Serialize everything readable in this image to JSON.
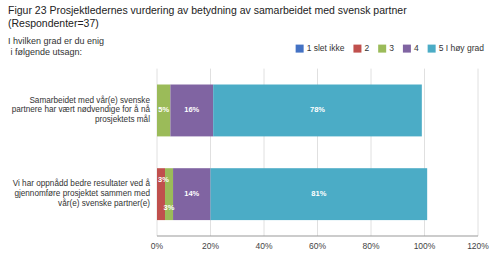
{
  "chart_data": {
    "type": "bar",
    "orientation": "horizontal",
    "stacked": true,
    "title": "Figur 23 Prosjektledernes vurdering av betydning av samarbeidet med svensk partner (Respondenter=37)",
    "annotations": [
      "I hvilken grad er du enig\n i følgende utsagn:"
    ],
    "categories": [
      "Samarbeidet med vår(e) svenske\npartnere har vært nødvendige for å nå\nprosjektets mål",
      "Vi har oppnådd bedre resultater ved å\ngjennomføre prosjektet sammen med\nvår(e) svenske partner(e)"
    ],
    "series": [
      {
        "name": "1 slet ikke",
        "color": "#4472C4",
        "values": [
          0,
          0
        ],
        "value_labels": [
          null,
          null
        ]
      },
      {
        "name": "2",
        "color": "#C0504D",
        "values": [
          0,
          3
        ],
        "value_labels": [
          null,
          "3%"
        ]
      },
      {
        "name": "3",
        "color": "#9BBB59",
        "values": [
          5,
          3
        ],
        "value_labels": [
          "5%",
          "3%"
        ]
      },
      {
        "name": "4",
        "color": "#8064A2",
        "values": [
          16,
          14
        ],
        "value_labels": [
          "16%",
          "14%"
        ]
      },
      {
        "name": "5 I høy grad",
        "color": "#4BACC6",
        "values": [
          78,
          81
        ],
        "value_labels": [
          "78%",
          "81%"
        ]
      }
    ],
    "data_labels": true,
    "xlim": [
      0,
      120
    ],
    "xticks": [
      {
        "value": 0,
        "label": "0%"
      },
      {
        "value": 20,
        "label": "20%"
      },
      {
        "value": 40,
        "label": "40%"
      },
      {
        "value": 60,
        "label": "60%"
      },
      {
        "value": 80,
        "label": "80%"
      },
      {
        "value": 100,
        "label": "100%"
      },
      {
        "value": 120,
        "label": "120%"
      }
    ],
    "grid": true,
    "legend": "top"
  }
}
